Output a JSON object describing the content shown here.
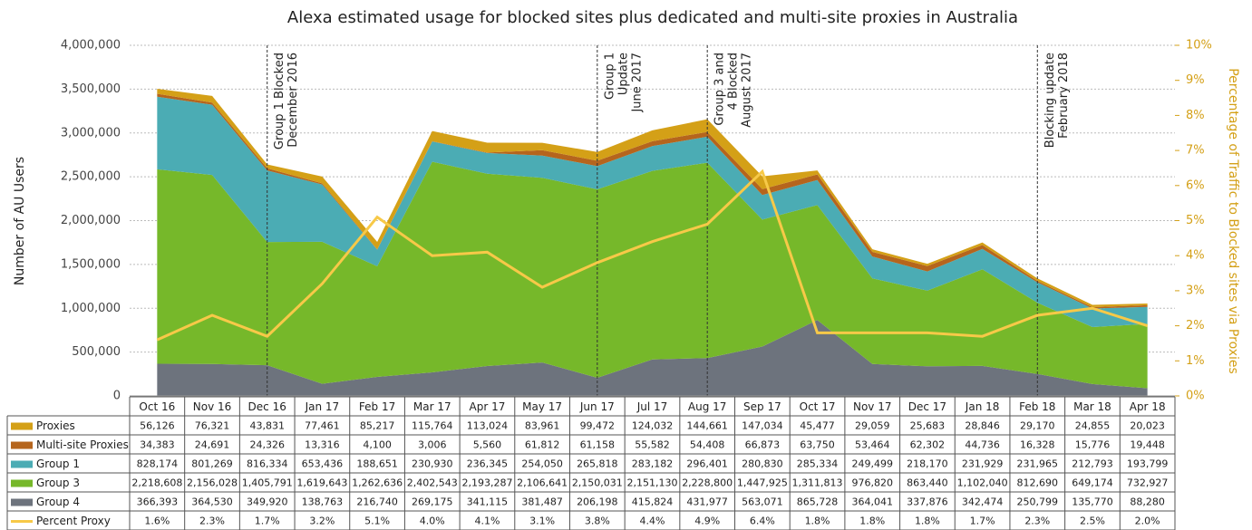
{
  "chart_data": {
    "type": "stacked-area",
    "title": "Alexa estimated usage for blocked sites plus dedicated and multi-site proxies in Australia",
    "ylabel": "Number of AU Users",
    "y2label": "Percentage of Traffic to Blocked sites via Proxies",
    "categories": [
      "Oct 16",
      "Nov 16",
      "Dec 16",
      "Jan 17",
      "Feb 17",
      "Mar 17",
      "Apr 17",
      "May 17",
      "Jun 17",
      "Jul 17",
      "Aug 17",
      "Sep 17",
      "Oct 17",
      "Nov 17",
      "Dec 17",
      "Jan 18",
      "Feb 18",
      "Mar 18",
      "Apr 18"
    ],
    "ylim": [
      0,
      4000000
    ],
    "yticks": [
      0,
      {
        "value": 500000,
        "label": "500,000"
      },
      {
        "value": 1000000,
        "label": "1,000,000"
      },
      {
        "value": 1500000,
        "label": "1,500,000"
      },
      {
        "value": 2000000,
        "label": "2,000,000"
      },
      {
        "value": 2500000,
        "label": "2,500,000"
      },
      {
        "value": 3000000,
        "label": "3,000,000"
      },
      {
        "value": 3500000,
        "label": "3,500,000"
      },
      {
        "value": 4000000,
        "label": "4,000,000"
      }
    ],
    "y2lim": [
      0,
      10
    ],
    "y2ticks": [
      {
        "value": 0,
        "label": "0%"
      },
      {
        "value": 1,
        "label": "1%"
      },
      {
        "value": 2,
        "label": "2%"
      },
      {
        "value": 3,
        "label": "3%"
      },
      {
        "value": 4,
        "label": "4%"
      },
      {
        "value": 5,
        "label": "5%"
      },
      {
        "value": 6,
        "label": "6%"
      },
      {
        "value": 7,
        "label": "7%"
      },
      {
        "value": 8,
        "label": "8%"
      },
      {
        "value": 9,
        "label": "9%"
      },
      {
        "value": 10,
        "label": "10%"
      }
    ],
    "grid": true,
    "series": [
      {
        "name": "Proxies",
        "color": "#d4a017",
        "values": [
          56126,
          76321,
          43831,
          77461,
          85217,
          115764,
          113024,
          83961,
          99472,
          124032,
          144661,
          147034,
          45477,
          29059,
          25683,
          28846,
          29170,
          24855,
          20023
        ],
        "value_labels": [
          "56,126",
          "76,321",
          "43,831",
          "77,461",
          "85,217",
          "115,764",
          "113,024",
          "83,961",
          "99,472",
          "124,032",
          "144,661",
          "147,034",
          "45,477",
          "29,059",
          "25,683",
          "28,846",
          "29,170",
          "24,855",
          "20,023"
        ]
      },
      {
        "name": "Multi-site Proxies",
        "color": "#b5651d",
        "values": [
          34383,
          24691,
          24326,
          13316,
          4100,
          3006,
          5560,
          61812,
          61158,
          55582,
          54408,
          66873,
          63750,
          53464,
          62302,
          44736,
          16328,
          15776,
          19448
        ],
        "value_labels": [
          "34,383",
          "24,691",
          "24,326",
          "13,316",
          "4,100",
          "3,006",
          "5,560",
          "61,812",
          "61,158",
          "55,582",
          "54,408",
          "66,873",
          "63,750",
          "53,464",
          "62,302",
          "44,736",
          "16,328",
          "15,776",
          "19,448"
        ]
      },
      {
        "name": "Group 1",
        "color": "#4bacb4",
        "values": [
          828174,
          801269,
          816334,
          653436,
          188651,
          230930,
          236345,
          254050,
          265818,
          283182,
          296401,
          280830,
          285334,
          249499,
          218170,
          231929,
          231965,
          212793,
          193799
        ],
        "value_labels": [
          "828,174",
          "801,269",
          "816,334",
          "653,436",
          "188,651",
          "230,930",
          "236,345",
          "254,050",
          "265,818",
          "283,182",
          "296,401",
          "280,830",
          "285,334",
          "249,499",
          "218,170",
          "231,929",
          "231,965",
          "212,793",
          "193,799"
        ]
      },
      {
        "name": "Group 3",
        "color": "#76b82a",
        "values": [
          2218608,
          2156028,
          1405791,
          1619643,
          1262636,
          2402543,
          2193287,
          2106641,
          2150031,
          2151130,
          2228800,
          1447925,
          1311813,
          976820,
          863440,
          1102040,
          812690,
          649174,
          732927
        ],
        "value_labels": [
          "2,218,608",
          "2,156,028",
          "1,405,791",
          "1,619,643",
          "1,262,636",
          "2,402,543",
          "2,193,287",
          "2,106,641",
          "2,150,031",
          "2,151,130",
          "2,228,800",
          "1,447,925",
          "1,311,813",
          "976,820",
          "863,440",
          "1,102,040",
          "812,690",
          "649,174",
          "732,927"
        ]
      },
      {
        "name": "Group 4",
        "color": "#6d737d",
        "values": [
          366393,
          364530,
          349920,
          138763,
          216740,
          269175,
          341115,
          381487,
          206198,
          415824,
          431977,
          563071,
          865728,
          364041,
          337876,
          342474,
          250799,
          135770,
          88280
        ],
        "value_labels": [
          "366,393",
          "364,530",
          "349,920",
          "138,763",
          "216,740",
          "269,175",
          "341,115",
          "381,487",
          "206,198",
          "415,824",
          "431,977",
          "563,071",
          "865,728",
          "364,041",
          "337,876",
          "342,474",
          "250,799",
          "135,770",
          "88,280"
        ]
      },
      {
        "name": "Percent Proxy",
        "color": "#f7c948",
        "axis": "y2",
        "values": [
          1.6,
          2.3,
          1.7,
          3.2,
          5.1,
          4.0,
          4.1,
          3.1,
          3.8,
          4.4,
          4.9,
          6.4,
          1.8,
          1.8,
          1.8,
          1.7,
          2.3,
          2.5,
          2.0
        ],
        "value_labels": [
          "1.6%",
          "2.3%",
          "1.7%",
          "3.2%",
          "5.1%",
          "4.0%",
          "4.1%",
          "3.1%",
          "3.8%",
          "4.4%",
          "4.9%",
          "6.4%",
          "1.8%",
          "1.8%",
          "1.8%",
          "1.7%",
          "2.3%",
          "2.5%",
          "2.0%"
        ]
      }
    ],
    "annotations": [
      {
        "x": "Dec 16",
        "text": [
          "Group 1 Blocked",
          "December 2016"
        ]
      },
      {
        "x": "Jun 17",
        "text": [
          "Group 1",
          "Update",
          "June 2017"
        ]
      },
      {
        "x": "Aug 17",
        "text": [
          "Group 3 and",
          "4 Blocked",
          "August 2017"
        ]
      },
      {
        "x": "Feb 18",
        "text": [
          "Blocking update",
          "February 2018"
        ]
      }
    ]
  }
}
